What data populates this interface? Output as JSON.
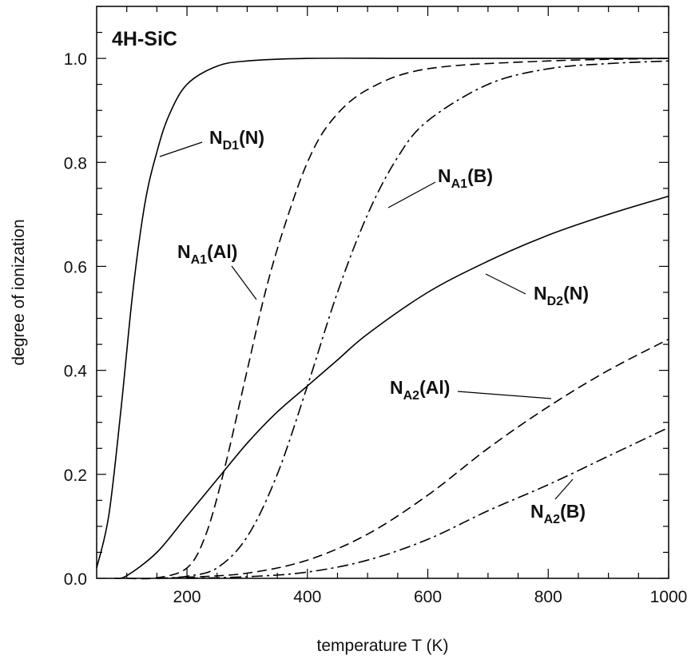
{
  "chart_data": {
    "type": "line",
    "title": "",
    "panel_label": "4H-SiC",
    "xlabel": "temperature T (K)",
    "ylabel": "degree of ionization",
    "xlim": [
      50,
      1000
    ],
    "ylim": [
      0,
      1.1
    ],
    "x_ticks": [
      200,
      400,
      600,
      800,
      1000
    ],
    "y_ticks": [
      0.0,
      0.2,
      0.4,
      0.6,
      0.8,
      1.0
    ],
    "x_tick_labels": [
      "200",
      "400",
      "600",
      "800",
      "1000"
    ],
    "y_tick_labels": [
      "0.0",
      "0.2",
      "0.4",
      "0.6",
      "0.8",
      "1.0"
    ],
    "grid": false,
    "legend": "none",
    "series": [
      {
        "name": "ND1(N)",
        "label_main": "N",
        "label_sub": "D1",
        "label_tail": "(N)",
        "line_style": "solid",
        "points": [
          [
            50,
            0.02
          ],
          [
            70,
            0.12
          ],
          [
            90,
            0.32
          ],
          [
            110,
            0.55
          ],
          [
            130,
            0.72
          ],
          [
            150,
            0.82
          ],
          [
            170,
            0.89
          ],
          [
            200,
            0.95
          ],
          [
            250,
            0.985
          ],
          [
            300,
            0.995
          ],
          [
            400,
            1.0
          ],
          [
            600,
            1.0
          ],
          [
            1000,
            1.0
          ]
        ]
      },
      {
        "name": "NA1(Al)",
        "label_main": "N",
        "label_sub": "A1",
        "label_tail": "(Al)",
        "line_style": "dashed",
        "points": [
          [
            100,
            0.0
          ],
          [
            150,
            0.001
          ],
          [
            200,
            0.02
          ],
          [
            230,
            0.08
          ],
          [
            260,
            0.2
          ],
          [
            300,
            0.4
          ],
          [
            330,
            0.55
          ],
          [
            360,
            0.67
          ],
          [
            400,
            0.8
          ],
          [
            440,
            0.88
          ],
          [
            500,
            0.94
          ],
          [
            600,
            0.98
          ],
          [
            800,
            0.995
          ],
          [
            1000,
            1.0
          ]
        ]
      },
      {
        "name": "NA1(B)",
        "label_main": "N",
        "label_sub": "A1",
        "label_tail": "(B)",
        "line_style": "dashdot",
        "points": [
          [
            150,
            0.0
          ],
          [
            200,
            0.004
          ],
          [
            250,
            0.02
          ],
          [
            300,
            0.08
          ],
          [
            350,
            0.2
          ],
          [
            400,
            0.37
          ],
          [
            450,
            0.55
          ],
          [
            500,
            0.7
          ],
          [
            550,
            0.81
          ],
          [
            600,
            0.88
          ],
          [
            700,
            0.95
          ],
          [
            800,
            0.98
          ],
          [
            900,
            0.99
          ],
          [
            1000,
            0.995
          ]
        ]
      },
      {
        "name": "ND2(N)",
        "label_main": "N",
        "label_sub": "D2",
        "label_tail": "(N)",
        "line_style": "solid",
        "points": [
          [
            80,
            0.0
          ],
          [
            100,
            0.005
          ],
          [
            150,
            0.05
          ],
          [
            200,
            0.12
          ],
          [
            250,
            0.19
          ],
          [
            300,
            0.26
          ],
          [
            350,
            0.32
          ],
          [
            400,
            0.37
          ],
          [
            450,
            0.42
          ],
          [
            500,
            0.47
          ],
          [
            600,
            0.55
          ],
          [
            700,
            0.61
          ],
          [
            800,
            0.66
          ],
          [
            900,
            0.7
          ],
          [
            1000,
            0.735
          ]
        ]
      },
      {
        "name": "NA2(Al)",
        "label_main": "N",
        "label_sub": "A2",
        "label_tail": "(Al)",
        "line_style": "dashed",
        "points": [
          [
            150,
            0.0
          ],
          [
            200,
            0.002
          ],
          [
            300,
            0.01
          ],
          [
            400,
            0.035
          ],
          [
            500,
            0.085
          ],
          [
            600,
            0.16
          ],
          [
            700,
            0.25
          ],
          [
            800,
            0.33
          ],
          [
            900,
            0.4
          ],
          [
            1000,
            0.46
          ]
        ]
      },
      {
        "name": "NA2(B)",
        "label_main": "N",
        "label_sub": "A2",
        "label_tail": "(B)",
        "line_style": "dashdot",
        "points": [
          [
            200,
            0.0
          ],
          [
            300,
            0.003
          ],
          [
            400,
            0.012
          ],
          [
            500,
            0.035
          ],
          [
            600,
            0.075
          ],
          [
            700,
            0.13
          ],
          [
            800,
            0.18
          ],
          [
            900,
            0.235
          ],
          [
            1000,
            0.29
          ]
        ]
      }
    ]
  }
}
